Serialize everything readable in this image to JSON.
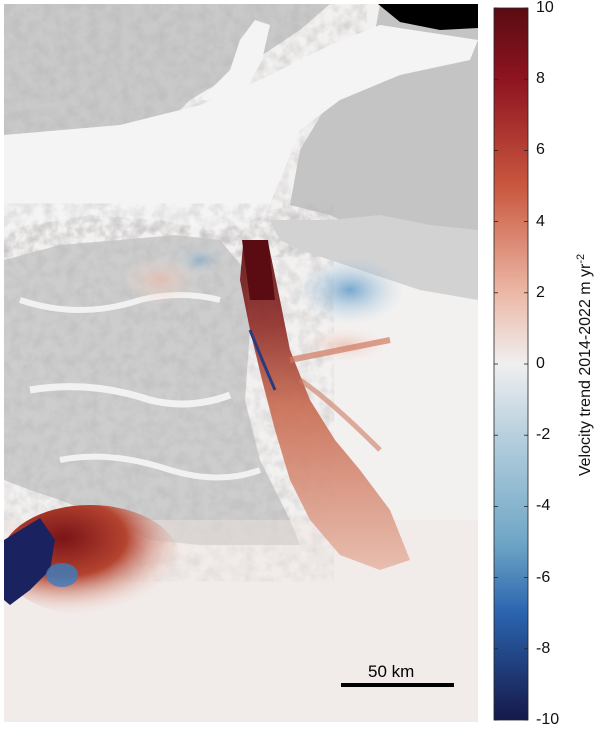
{
  "colorbar": {
    "label": "Velocity trend 2014-2022 m yr",
    "label_exponent": "-2",
    "min": -10,
    "max": 10,
    "ticks": [
      "10",
      "8",
      "6",
      "4",
      "2",
      "0",
      "-2",
      "-4",
      "-6",
      "-8",
      "-10"
    ],
    "colors": {
      "high": "#5a0c12",
      "mid_high": "#c9573f",
      "zero": "#efefef",
      "mid_low": "#6fa6c6",
      "low": "#16184a"
    }
  },
  "scale_bar": {
    "label": "50 km"
  },
  "map_colors": {
    "ice_shelf": "#f3f3f3",
    "terrain_shadow": "#8c8c8c",
    "terrain_light": "#f7f7f7",
    "ocean_black": "#000000"
  }
}
